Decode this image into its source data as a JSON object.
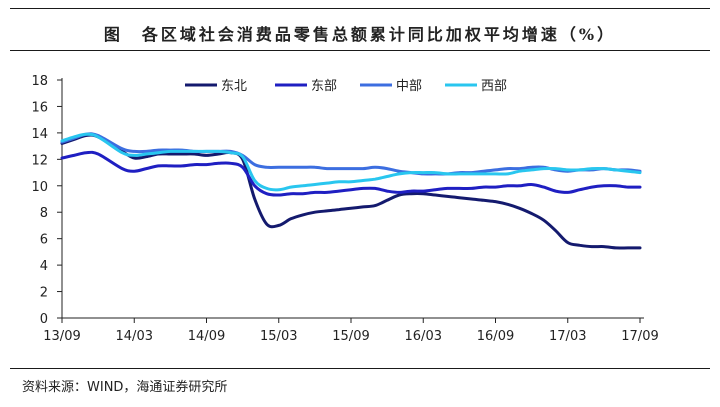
{
  "header": {
    "title": "图　各区域社会消费品零售总额累计同比加权平均增速（%）"
  },
  "footer": {
    "source": "资料来源：WIND，海通证券研究所"
  },
  "chart_data": {
    "type": "line",
    "title": "图　各区域社会消费品零售总额累计同比加权平均增速（%）",
    "xlabel": "",
    "ylabel": "",
    "ylim": [
      0,
      18
    ],
    "yticks": [
      0,
      2,
      4,
      6,
      8,
      10,
      12,
      14,
      16,
      18
    ],
    "xlim": [
      "2013-09",
      "2017-09"
    ],
    "xticks": [
      "13/09",
      "14/03",
      "14/09",
      "15/03",
      "15/09",
      "16/03",
      "16/09",
      "17/03",
      "17/09"
    ],
    "xtick_dates": [
      "2013-09",
      "2014-03",
      "2014-09",
      "2015-03",
      "2015-09",
      "2016-03",
      "2016-09",
      "2017-03",
      "2017-09"
    ],
    "grid": false,
    "legend": "top-center",
    "series": [
      {
        "name": "东北",
        "color": "#141a6e",
        "x": [
          "2013-09",
          "2013-10",
          "2013-11",
          "2013-12",
          "2014-02",
          "2014-03",
          "2014-04",
          "2014-05",
          "2014-06",
          "2014-07",
          "2014-08",
          "2014-09",
          "2014-10",
          "2014-11",
          "2014-12",
          "2015-01",
          "2015-02",
          "2015-03",
          "2015-04",
          "2015-05",
          "2015-06",
          "2015-07",
          "2015-08",
          "2015-09",
          "2015-10",
          "2015-11",
          "2015-12",
          "2016-01",
          "2016-02",
          "2016-03",
          "2016-04",
          "2016-05",
          "2016-06",
          "2016-07",
          "2016-08",
          "2016-09",
          "2016-10",
          "2016-11",
          "2016-12",
          "2017-01",
          "2017-02",
          "2017-03",
          "2017-04",
          "2017-05",
          "2017-06",
          "2017-07",
          "2017-08",
          "2017-09"
        ],
        "values": [
          13.2,
          13.5,
          13.8,
          13.7,
          12.6,
          12.1,
          12.2,
          12.4,
          12.4,
          12.4,
          12.4,
          12.3,
          12.4,
          12.5,
          12.0,
          9.0,
          7.1,
          7.0,
          7.5,
          7.8,
          8.0,
          8.1,
          8.2,
          8.3,
          8.4,
          8.5,
          8.9,
          9.3,
          9.4,
          9.4,
          9.3,
          9.2,
          9.1,
          9.0,
          8.9,
          8.8,
          8.6,
          8.3,
          7.9,
          7.4,
          6.6,
          5.7,
          5.5,
          5.4,
          5.4,
          5.3,
          5.3,
          5.3
        ]
      },
      {
        "name": "东部",
        "color": "#1f1fc2",
        "x": [
          "2013-09",
          "2013-10",
          "2013-11",
          "2013-12",
          "2014-02",
          "2014-03",
          "2014-04",
          "2014-05",
          "2014-06",
          "2014-07",
          "2014-08",
          "2014-09",
          "2014-10",
          "2014-11",
          "2014-12",
          "2015-01",
          "2015-02",
          "2015-03",
          "2015-04",
          "2015-05",
          "2015-06",
          "2015-07",
          "2015-08",
          "2015-09",
          "2015-10",
          "2015-11",
          "2015-12",
          "2016-01",
          "2016-02",
          "2016-03",
          "2016-04",
          "2016-05",
          "2016-06",
          "2016-07",
          "2016-08",
          "2016-09",
          "2016-10",
          "2016-11",
          "2016-12",
          "2017-01",
          "2017-02",
          "2017-03",
          "2017-04",
          "2017-05",
          "2017-06",
          "2017-07",
          "2017-08",
          "2017-09"
        ],
        "values": [
          12.1,
          12.3,
          12.5,
          12.4,
          11.3,
          11.1,
          11.3,
          11.5,
          11.5,
          11.5,
          11.6,
          11.6,
          11.7,
          11.7,
          11.4,
          10.0,
          9.4,
          9.3,
          9.4,
          9.4,
          9.5,
          9.5,
          9.6,
          9.7,
          9.8,
          9.8,
          9.6,
          9.5,
          9.6,
          9.6,
          9.7,
          9.8,
          9.8,
          9.8,
          9.9,
          9.9,
          10.0,
          10.0,
          10.1,
          9.9,
          9.6,
          9.5,
          9.7,
          9.9,
          10.0,
          10.0,
          9.9,
          9.9
        ]
      },
      {
        "name": "中部",
        "color": "#3c6ee0",
        "x": [
          "2013-09",
          "2013-10",
          "2013-11",
          "2013-12",
          "2014-02",
          "2014-03",
          "2014-04",
          "2014-05",
          "2014-06",
          "2014-07",
          "2014-08",
          "2014-09",
          "2014-10",
          "2014-11",
          "2014-12",
          "2015-01",
          "2015-02",
          "2015-03",
          "2015-04",
          "2015-05",
          "2015-06",
          "2015-07",
          "2015-08",
          "2015-09",
          "2015-10",
          "2015-11",
          "2015-12",
          "2016-01",
          "2016-02",
          "2016-03",
          "2016-04",
          "2016-05",
          "2016-06",
          "2016-07",
          "2016-08",
          "2016-09",
          "2016-10",
          "2016-11",
          "2016-12",
          "2017-01",
          "2017-02",
          "2017-03",
          "2017-04",
          "2017-05",
          "2017-06",
          "2017-07",
          "2017-08",
          "2017-09"
        ],
        "values": [
          13.3,
          13.6,
          13.9,
          13.8,
          12.8,
          12.6,
          12.6,
          12.7,
          12.7,
          12.7,
          12.6,
          12.6,
          12.6,
          12.6,
          12.3,
          11.6,
          11.4,
          11.4,
          11.4,
          11.4,
          11.4,
          11.3,
          11.3,
          11.3,
          11.3,
          11.4,
          11.3,
          11.1,
          11.0,
          10.9,
          10.9,
          10.9,
          11.0,
          11.0,
          11.1,
          11.2,
          11.3,
          11.3,
          11.4,
          11.4,
          11.2,
          11.1,
          11.2,
          11.2,
          11.3,
          11.2,
          11.2,
          11.1
        ]
      },
      {
        "name": "西部",
        "color": "#29c6ef",
        "x": [
          "2013-09",
          "2013-10",
          "2013-11",
          "2013-12",
          "2014-02",
          "2014-03",
          "2014-04",
          "2014-05",
          "2014-06",
          "2014-07",
          "2014-08",
          "2014-09",
          "2014-10",
          "2014-11",
          "2014-12",
          "2015-01",
          "2015-02",
          "2015-03",
          "2015-04",
          "2015-05",
          "2015-06",
          "2015-07",
          "2015-08",
          "2015-09",
          "2015-10",
          "2015-11",
          "2015-12",
          "2016-01",
          "2016-02",
          "2016-03",
          "2016-04",
          "2016-05",
          "2016-06",
          "2016-07",
          "2016-08",
          "2016-09",
          "2016-10",
          "2016-11",
          "2016-12",
          "2017-01",
          "2017-02",
          "2017-03",
          "2017-04",
          "2017-05",
          "2017-06",
          "2017-07",
          "2017-08",
          "2017-09"
        ],
        "values": [
          13.4,
          13.7,
          13.9,
          13.7,
          12.5,
          12.3,
          12.4,
          12.5,
          12.6,
          12.6,
          12.6,
          12.6,
          12.6,
          12.5,
          12.2,
          10.4,
          9.8,
          9.7,
          9.9,
          10.0,
          10.1,
          10.2,
          10.3,
          10.3,
          10.4,
          10.5,
          10.7,
          10.9,
          11.0,
          11.0,
          11.0,
          10.9,
          10.9,
          10.9,
          10.9,
          10.9,
          10.9,
          11.1,
          11.2,
          11.3,
          11.3,
          11.2,
          11.2,
          11.3,
          11.3,
          11.2,
          11.1,
          11.0
        ]
      }
    ]
  }
}
